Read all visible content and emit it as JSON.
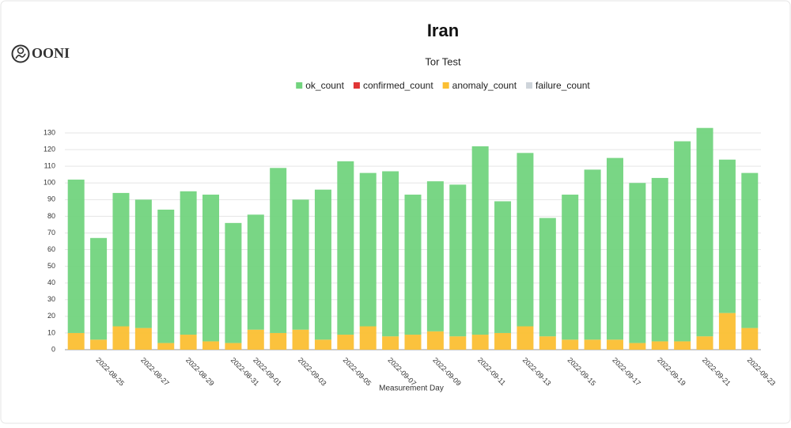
{
  "logo": "OONI",
  "chart_data": {
    "type": "stacked_bar",
    "title": "Iran",
    "subtitle": "Tor Test",
    "x_label": "Measurement Day",
    "categories": [
      null,
      "2022-08-25",
      null,
      "2022-08-27",
      null,
      "2022-08-29",
      null,
      "2022-08-31",
      "2022-09-01",
      null,
      "2022-09-03",
      null,
      "2022-09-05",
      null,
      "2022-09-07",
      null,
      "2022-09-09",
      null,
      "2022-09-11",
      null,
      "2022-09-13",
      null,
      "2022-09-15",
      null,
      "2022-09-17",
      null,
      "2022-09-19",
      null,
      "2022-09-21",
      null,
      "2022-09-23"
    ],
    "series": [
      {
        "name": "ok_count",
        "color": "#72d47e",
        "values": [
          92,
          61,
          80,
          77,
          80,
          86,
          88,
          72,
          69,
          99,
          78,
          90,
          104,
          92,
          99,
          84,
          90,
          91,
          113,
          79,
          104,
          71,
          87,
          102,
          109,
          96,
          98,
          120,
          125,
          92,
          93
        ]
      },
      {
        "name": "confirmed_count",
        "color": "#e03535",
        "values": [
          0,
          0,
          0,
          0,
          0,
          0,
          0,
          0,
          0,
          0,
          0,
          0,
          0,
          0,
          0,
          0,
          0,
          0,
          0,
          0,
          0,
          0,
          0,
          0,
          0,
          0,
          0,
          0,
          0,
          0,
          0
        ]
      },
      {
        "name": "anomaly_count",
        "color": "#fbbf33",
        "values": [
          10,
          6,
          14,
          13,
          4,
          9,
          5,
          4,
          12,
          10,
          12,
          6,
          9,
          14,
          8,
          9,
          11,
          8,
          9,
          10,
          14,
          8,
          6,
          6,
          6,
          4,
          5,
          5,
          8,
          22,
          13
        ]
      },
      {
        "name": "failure_count",
        "color": "#ced4da",
        "values": [
          0,
          0,
          0,
          0,
          0,
          0,
          0,
          0,
          0,
          0,
          0,
          0,
          0,
          0,
          0,
          0,
          0,
          0,
          0,
          0,
          0,
          0,
          0,
          0,
          0,
          0,
          0,
          0,
          0,
          0,
          0
        ]
      }
    ],
    "ylim": [
      0,
      135
    ],
    "yticks": [
      0,
      10,
      20,
      30,
      40,
      50,
      60,
      70,
      80,
      90,
      100,
      110,
      120,
      130
    ],
    "grid": true
  }
}
